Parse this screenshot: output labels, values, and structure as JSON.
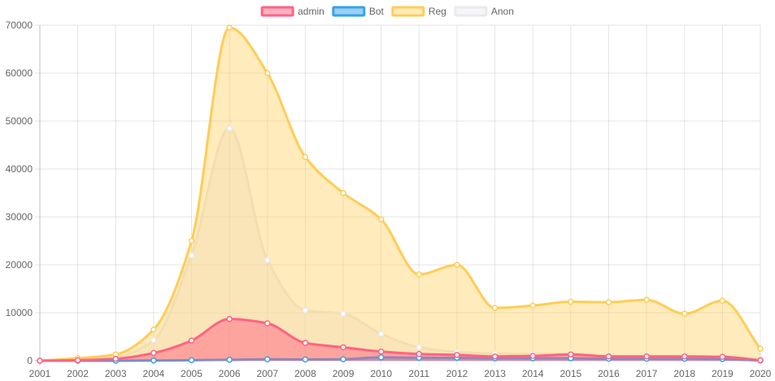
{
  "chart_data": {
    "type": "area",
    "title": "",
    "xlabel": "",
    "ylabel": "",
    "x": [
      "2001",
      "2002",
      "2003",
      "2004",
      "2005",
      "2006",
      "2007",
      "2008",
      "2009",
      "2010",
      "2011",
      "2012",
      "2013",
      "2014",
      "2015",
      "2016",
      "2017",
      "2018",
      "2019",
      "2020"
    ],
    "ylim": [
      0,
      70000
    ],
    "yticks": [
      0,
      10000,
      20000,
      30000,
      40000,
      50000,
      60000,
      70000
    ],
    "grid": true,
    "legend_position": "top",
    "stacked": false,
    "series": [
      {
        "name": "admin",
        "color": "#ff6384",
        "fill": "rgba(255,99,132,0.5)",
        "values": [
          0,
          100,
          400,
          1600,
          4200,
          8700,
          7800,
          3700,
          2800,
          1900,
          1400,
          1200,
          900,
          1000,
          1300,
          900,
          900,
          900,
          800,
          100
        ]
      },
      {
        "name": "Bot",
        "color": "#36a2eb",
        "fill": "rgba(54,162,235,0.5)",
        "values": [
          0,
          0,
          0,
          50,
          100,
          200,
          300,
          250,
          300,
          700,
          600,
          600,
          500,
          500,
          500,
          400,
          400,
          400,
          350,
          50
        ]
      },
      {
        "name": "Reg",
        "color": "#ffcd56",
        "fill": "rgba(255,205,86,0.4)",
        "values": [
          0,
          500,
          1300,
          6500,
          25000,
          69500,
          60000,
          42500,
          35000,
          29500,
          18000,
          20000,
          11000,
          11500,
          12300,
          12200,
          12700,
          9800,
          12500,
          2500
        ]
      },
      {
        "name": "Anon",
        "color": "#e9e9ee",
        "fill": "rgba(233,233,238,0.4)",
        "values": [
          0,
          200,
          700,
          4300,
          22000,
          48500,
          21000,
          10500,
          9800,
          5600,
          2800,
          1800,
          1500,
          1400,
          1500,
          900,
          800,
          700,
          600,
          200
        ]
      }
    ]
  }
}
